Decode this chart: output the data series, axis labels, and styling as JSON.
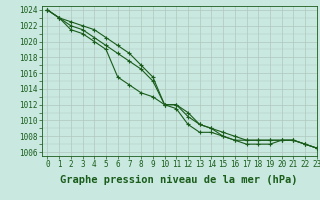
{
  "title": "Graphe pression niveau de la mer (hPa)",
  "background_color": "#c8e8e0",
  "grid_color": "#b0c8c0",
  "line_color": "#1a5c1a",
  "marker_color": "#1a5c1a",
  "xlim": [
    -0.5,
    23
  ],
  "ylim": [
    1005.5,
    1024.5
  ],
  "xticks": [
    0,
    1,
    2,
    3,
    4,
    5,
    6,
    7,
    8,
    9,
    10,
    11,
    12,
    13,
    14,
    15,
    16,
    17,
    18,
    19,
    20,
    21,
    22,
    23
  ],
  "yticks": [
    1006,
    1008,
    1010,
    1012,
    1014,
    1016,
    1018,
    1020,
    1022,
    1024
  ],
  "series": [
    [
      1024.0,
      1023.0,
      1022.0,
      1021.5,
      1020.5,
      1019.5,
      1018.5,
      1017.5,
      1016.5,
      1015.0,
      1012.0,
      1012.0,
      1011.0,
      1009.5,
      1009.0,
      1008.0,
      1007.5,
      1007.5,
      1007.5,
      1007.5,
      1007.5,
      1007.5,
      1007.0,
      1006.5
    ],
    [
      1024.0,
      1023.0,
      1022.5,
      1022.0,
      1021.5,
      1020.5,
      1019.5,
      1018.5,
      1017.0,
      1015.5,
      1012.0,
      1012.0,
      1010.5,
      1009.5,
      1009.0,
      1008.5,
      1008.0,
      1007.5,
      1007.5,
      1007.5,
      1007.5,
      1007.5,
      1007.0,
      1006.5
    ],
    [
      1024.0,
      1023.0,
      1021.5,
      1021.0,
      1020.0,
      1019.0,
      1015.5,
      1014.5,
      1013.5,
      1013.0,
      1012.0,
      1011.5,
      1009.5,
      1008.5,
      1008.5,
      1008.0,
      1007.5,
      1007.0,
      1007.0,
      1007.0,
      1007.5,
      1007.5,
      1007.0,
      1006.5
    ]
  ],
  "tick_fontsize": 5.5,
  "xlabel_fontsize": 7.5
}
